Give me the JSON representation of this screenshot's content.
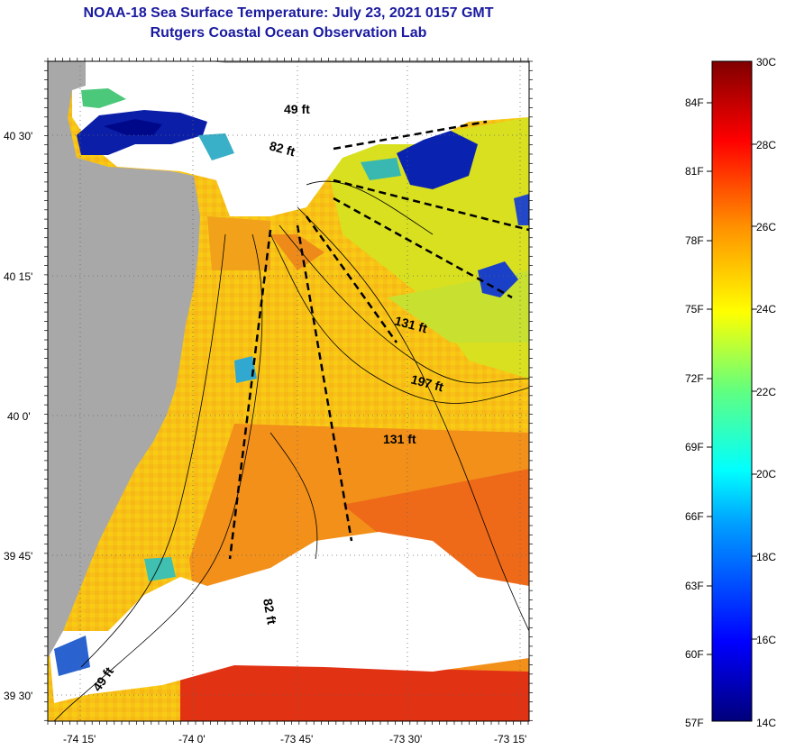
{
  "title": {
    "line1": "NOAA-18 Sea Surface Temperature:  July 23, 2021 0157 GMT",
    "line2": "Rutgers Coastal Ocean Observation Lab"
  },
  "map": {
    "lat_labels": [
      "40 30'",
      "40 15'",
      "40 0'",
      "39 45'",
      "39 30'"
    ],
    "lon_labels": [
      "-74 15'",
      "-74 0'",
      "-73 45'",
      "-73 30'",
      "-73 15'"
    ],
    "depth_labels": [
      "49 ft",
      "82 ft",
      "131 ft",
      "197 ft",
      "131 ft",
      "82 ft",
      "49 ft"
    ],
    "colors": {
      "land": "#a8a8a8",
      "cloud": "#ffffff",
      "warm_water": "#f5c418",
      "hot_water": "#e8401a",
      "cool_water": "#0a1aa8"
    }
  },
  "colorbar": {
    "f_labels": [
      "84F",
      "81F",
      "78F",
      "75F",
      "72F",
      "69F",
      "66F",
      "63F",
      "60F",
      "57F"
    ],
    "c_labels": [
      "30C",
      "28C",
      "26C",
      "24C",
      "22C",
      "20C",
      "18C",
      "16C",
      "14C"
    ]
  }
}
